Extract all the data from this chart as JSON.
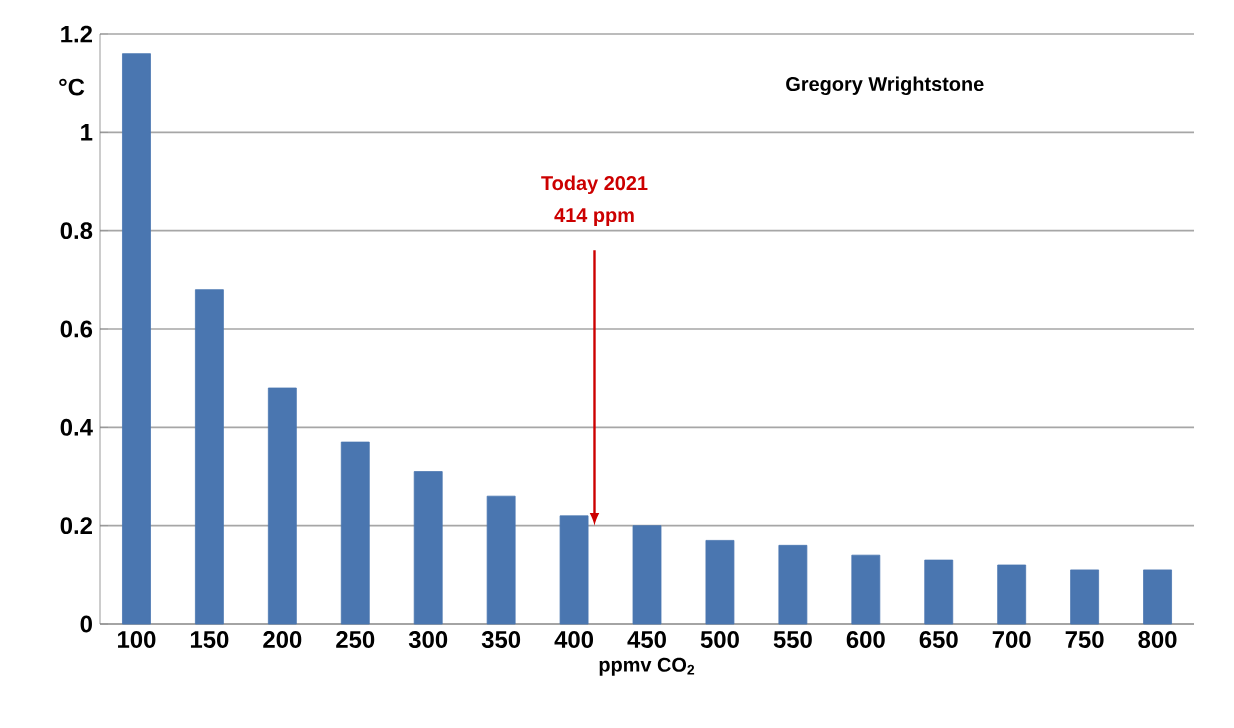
{
  "chart_data": {
    "type": "bar",
    "xlabel": "ppmv CO$_{2}$",
    "ylabel": "°C",
    "categories": [
      "100",
      "150",
      "200",
      "250",
      "300",
      "350",
      "400",
      "450",
      "500",
      "550",
      "600",
      "650",
      "700",
      "750",
      "800"
    ],
    "values": [
      1.16,
      0.68,
      0.48,
      0.37,
      0.31,
      0.26,
      0.22,
      0.2,
      0.17,
      0.16,
      0.14,
      0.13,
      0.12,
      0.11,
      0.11
    ],
    "color": "#4a76b0",
    "ylim": [
      0,
      1.2
    ],
    "yticks": [
      0,
      0.2,
      0.4,
      0.6,
      0.8,
      1,
      1.2
    ],
    "grid": "y",
    "annotations": [
      "Gregory Wrightstone",
      "Today 2021",
      {
        "text": "414 ppm",
        "y": 0.2
      }
    ]
  }
}
